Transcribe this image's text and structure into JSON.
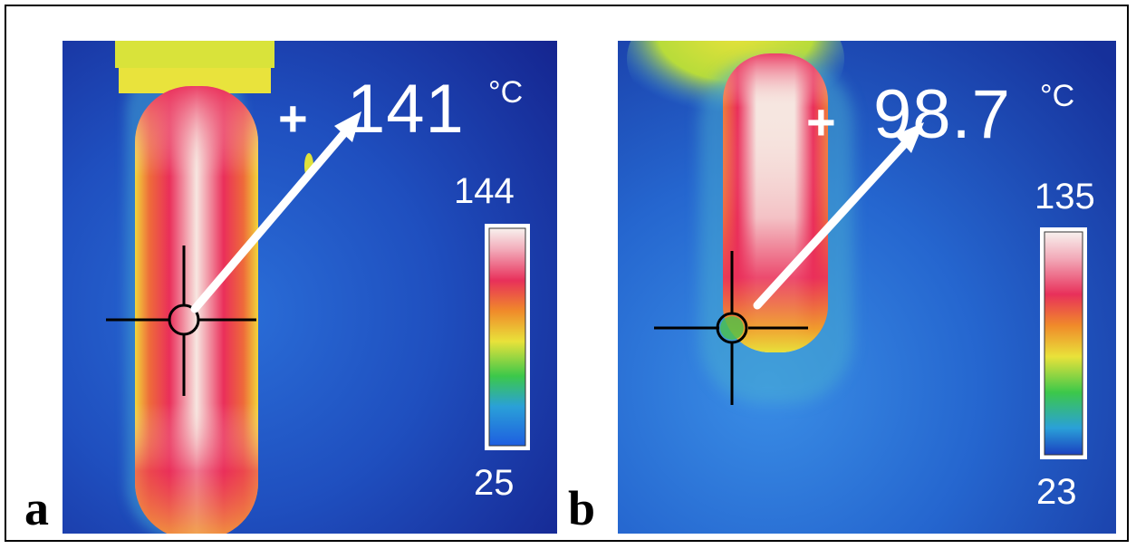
{
  "panels": [
    {
      "letter": "a",
      "spot_temperature": "141",
      "unit": "°C",
      "cursor_symbol": "+",
      "scale_max": "144",
      "scale_min": "25"
    },
    {
      "letter": "b",
      "spot_temperature": "98.7",
      "unit": "°C",
      "cursor_symbol": "+",
      "scale_max": "135",
      "scale_min": "23"
    }
  ],
  "colors": {
    "background_cold": "#1a2d9a",
    "mid_blue": "#2f6fd6",
    "warm_green": "#9ad43a",
    "warm_yellow": "#f3e23a",
    "hot_red": "#e8305a",
    "hottest": "#f6e9e2"
  }
}
